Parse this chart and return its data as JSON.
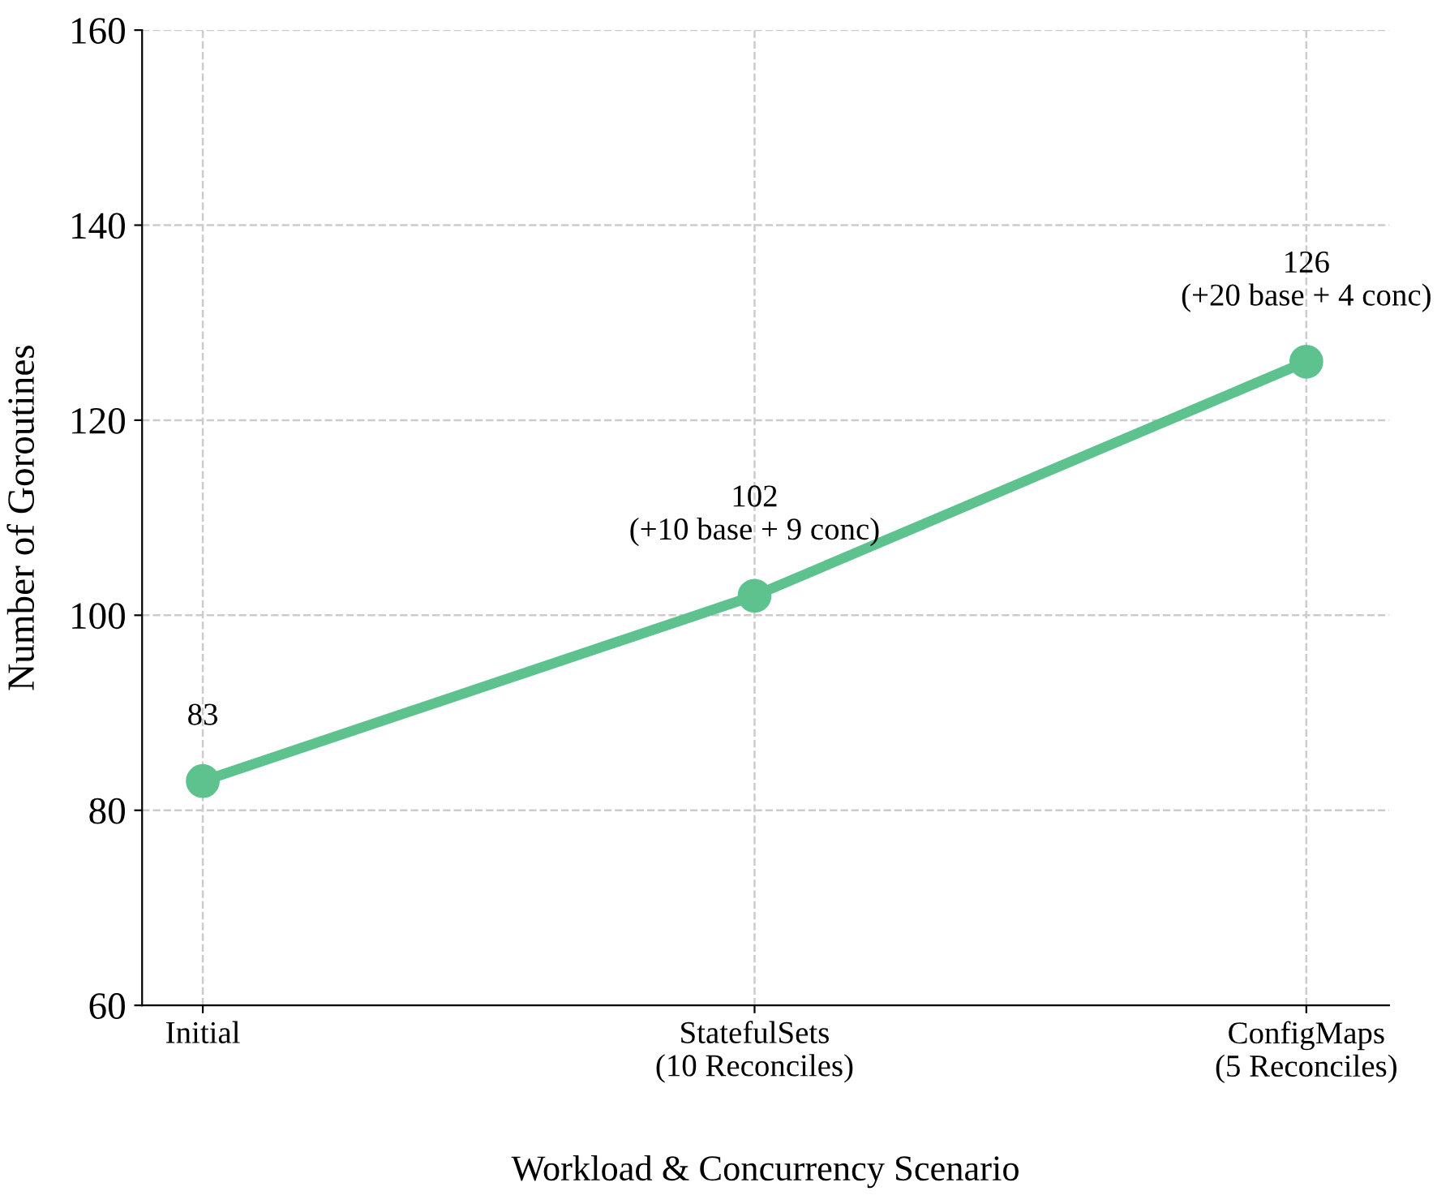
{
  "chart_data": {
    "type": "line",
    "xlabel": "Workload & Concurrency Scenario",
    "ylabel": "Number of Goroutines",
    "categories": [
      "Initial",
      "StatefulSets\n(10 Reconciles)",
      "ConfigMaps\n(5 Reconciles)"
    ],
    "series": [
      {
        "color": "#5ec28f",
        "values": [
          83,
          102,
          126
        ]
      }
    ],
    "ylim": [
      60,
      160
    ],
    "yticks": [
      60,
      80,
      100,
      120,
      140,
      160
    ],
    "grid": true,
    "marker": "circle",
    "line_style": "solid",
    "annotations": [
      {
        "text": "83",
        "x": "Initial",
        "y": 83
      },
      {
        "text": "102\n(+10 base + 9 conc)",
        "x": "StatefulSets\n(10 Reconciles)",
        "y": 102
      },
      {
        "text": "126\n(+20 base + 4 conc)",
        "x": "ConfigMaps\n(5 Reconciles)",
        "y": 126
      }
    ]
  }
}
